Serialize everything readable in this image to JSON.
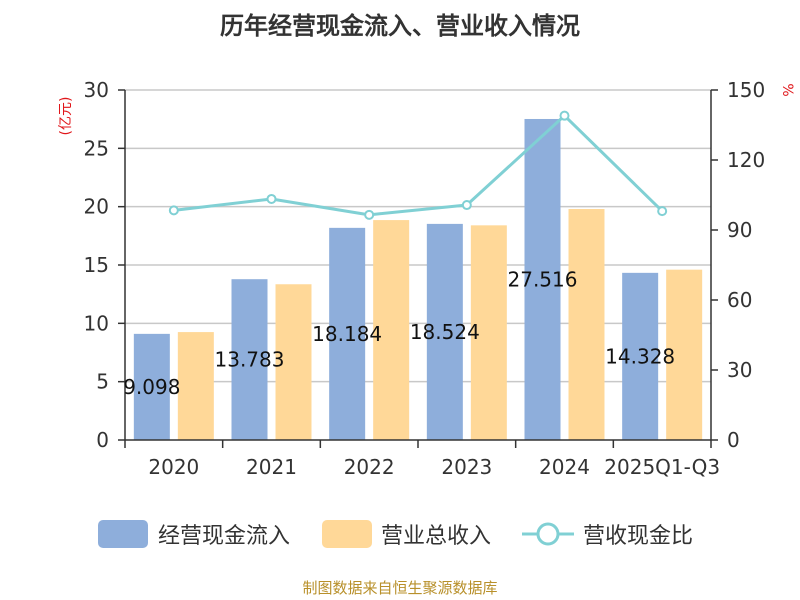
{
  "chart_data": {
    "type": "bar",
    "title": "历年经营现金流入、营业收入情况",
    "categories": [
      "2020",
      "2021",
      "2022",
      "2023",
      "2024",
      "2025Q1-Q3"
    ],
    "series": [
      {
        "name": "经营现金流入",
        "kind": "bar",
        "axis": "left",
        "color": "#8eaedb",
        "values": [
          9.098,
          13.783,
          18.184,
          18.524,
          27.516,
          14.328
        ],
        "labels": [
          "9.098",
          "13.783",
          "18.184",
          "18.524",
          "27.516",
          "14.328"
        ]
      },
      {
        "name": "营业总收入",
        "kind": "bar",
        "axis": "left",
        "color": "#ffd898",
        "values": [
          9.25,
          13.35,
          18.85,
          18.4,
          19.8,
          14.6
        ]
      },
      {
        "name": "营收现金比",
        "kind": "line",
        "axis": "right",
        "color": "#80d0d4",
        "values": [
          98.4,
          103.3,
          96.5,
          100.7,
          139.0,
          98.1
        ]
      }
    ],
    "y_left": {
      "unit": "(亿元)",
      "min": 0,
      "max": 30,
      "ticks": [
        0,
        5,
        10,
        15,
        20,
        25,
        30
      ]
    },
    "y_right": {
      "unit": "%",
      "min": 0,
      "max": 150,
      "ticks": [
        0,
        30,
        60,
        90,
        120,
        150
      ]
    },
    "grid": true,
    "legend_position": "bottom"
  },
  "source": "制图数据来自恒生聚源数据库"
}
